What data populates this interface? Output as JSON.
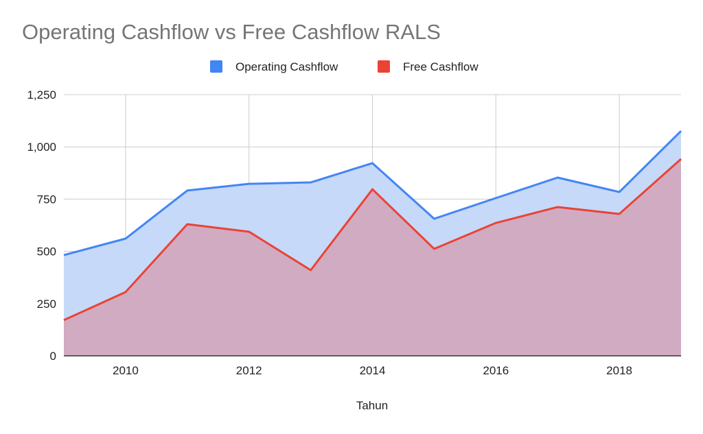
{
  "chart_data": {
    "type": "area",
    "title": "Operating Cashflow vs Free Cashflow RALS",
    "xlabel": "Tahun",
    "ylabel": "",
    "legend_position": "top",
    "x": [
      2009,
      2010,
      2011,
      2012,
      2013,
      2014,
      2015,
      2016,
      2017,
      2018,
      2019
    ],
    "x_ticks": [
      "2010",
      "2012",
      "2014",
      "2016",
      "2018"
    ],
    "y_ticks": [
      "0",
      "250",
      "500",
      "750",
      "1,000",
      "1,250"
    ],
    "ylim": [
      0,
      1250
    ],
    "xlim": [
      2009,
      2019
    ],
    "grid": true,
    "series": [
      {
        "name": "Operating Cashflow",
        "color": "#4285f4",
        "fill": "#c6d9f8",
        "values": [
          482,
          561,
          791,
          823,
          830,
          922,
          656,
          755,
          853,
          784,
          1076
        ]
      },
      {
        "name": "Free Cashflow",
        "color": "#ea4335",
        "fill": "#d2a9bf",
        "values": [
          171,
          305,
          630,
          594,
          410,
          797,
          512,
          636,
          712,
          679,
          942
        ]
      }
    ]
  }
}
